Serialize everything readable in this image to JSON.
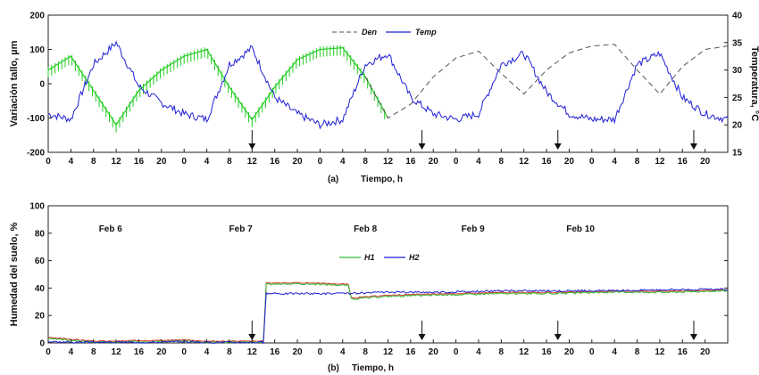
{
  "colors": {
    "stem": "#22cc22",
    "temp": "#1f1fd6",
    "den": "#555555",
    "h1": "#33bb33",
    "h2": "#1f1fd6",
    "h_red": "#d23a2a",
    "axes": "#222222"
  },
  "chart_data": [
    {
      "type": "line",
      "title": "",
      "caption_letter": "(a)",
      "caption_text": "Tiempo, h",
      "xlabel": "Tiempo, h",
      "ylabel": "Variación tallo, µm",
      "y2label": "Temperatura, °C",
      "ylim": [
        -200,
        200
      ],
      "y2lim": [
        15,
        40
      ],
      "xlim_hours": [
        0,
        120
      ],
      "yticks": [
        "-200",
        "-100",
        "0",
        "100",
        "200"
      ],
      "y2ticks": [
        "15",
        "20",
        "25",
        "30",
        "35",
        "40"
      ],
      "xticks": [
        "0",
        "4",
        "8",
        "12",
        "16",
        "20",
        "0",
        "4",
        "8",
        "12",
        "16",
        "20",
        "0",
        "4",
        "8",
        "12",
        "16",
        "20",
        "0",
        "4",
        "8",
        "12",
        "16",
        "20",
        "0",
        "4",
        "8",
        "12",
        "16",
        "20"
      ],
      "legend": {
        "placement": "top-center",
        "entries": [
          "Den",
          "Temp"
        ]
      },
      "arrows_at_hour": [
        36,
        66,
        90,
        114
      ],
      "series": [
        {
          "name": "Den",
          "axis": "left",
          "style": "dashed",
          "x": [
            0,
            4,
            8,
            12,
            16,
            20,
            24,
            28,
            32,
            36,
            40,
            44,
            48,
            52,
            56,
            60,
            64,
            68,
            72,
            76,
            80,
            84,
            88,
            92,
            96,
            100,
            104,
            108,
            112,
            116,
            120
          ],
          "y": [
            40,
            80,
            -20,
            -120,
            -20,
            40,
            80,
            100,
            -10,
            -105,
            -10,
            70,
            100,
            105,
            20,
            -100,
            -60,
            20,
            75,
            95,
            30,
            -30,
            40,
            90,
            110,
            115,
            40,
            -30,
            50,
            100,
            110
          ]
        },
        {
          "name": "Temp",
          "axis": "right",
          "style": "solid",
          "x": [
            0,
            4,
            8,
            12,
            16,
            20,
            24,
            28,
            32,
            36,
            40,
            44,
            48,
            52,
            56,
            60,
            64,
            68,
            72,
            76,
            80,
            84,
            88,
            92,
            96,
            100,
            104,
            108,
            112,
            116,
            120
          ],
          "y": [
            22,
            21,
            31,
            35,
            27,
            24,
            22,
            21,
            31,
            34,
            25,
            22,
            20,
            21,
            31,
            33,
            25,
            22,
            21,
            22,
            31,
            33,
            26,
            22,
            21,
            21,
            31,
            33,
            25,
            22,
            21
          ]
        }
      ]
    },
    {
      "type": "line",
      "title": "",
      "caption_letter": "(b)",
      "caption_text": "Tiempo, h",
      "xlabel": "Tiempo, h",
      "ylabel": "Humedad del suelo, %",
      "ylim": [
        0,
        100
      ],
      "xlim_hours": [
        0,
        120
      ],
      "yticks": [
        "0",
        "20",
        "40",
        "60",
        "80",
        "100"
      ],
      "xticks": [
        "0",
        "4",
        "8",
        "12",
        "16",
        "20",
        "0",
        "4",
        "8",
        "12",
        "16",
        "20",
        "0",
        "4",
        "8",
        "12",
        "16",
        "20",
        "0",
        "4",
        "8",
        "12",
        "16",
        "20",
        "0",
        "4",
        "8",
        "12",
        "16",
        "20"
      ],
      "legend": {
        "placement": "center",
        "entries": [
          "H1",
          "H2"
        ]
      },
      "date_labels": [
        {
          "text": "Feb 6",
          "hour": 11
        },
        {
          "text": "Feb 7",
          "hour": 34
        },
        {
          "text": "Feb 8",
          "hour": 56
        },
        {
          "text": "Feb  9",
          "hour": 75
        },
        {
          "text": "Feb 10",
          "hour": 94
        }
      ],
      "arrows_at_hour": [
        36,
        66,
        90,
        114
      ],
      "series": [
        {
          "name": "H1",
          "x": [
            0,
            4,
            8,
            12,
            16,
            20,
            24,
            28,
            32,
            36,
            38,
            38.5,
            46,
            53,
            53.5,
            60,
            70,
            80,
            90,
            100,
            110,
            120
          ],
          "y": [
            3,
            2,
            0.5,
            0.5,
            1,
            1,
            1.5,
            0.5,
            0.5,
            0.5,
            0.5,
            43,
            43,
            42,
            32,
            34,
            35,
            36,
            36,
            37,
            37,
            38
          ]
        },
        {
          "name": "H2",
          "x": [
            0,
            4,
            8,
            12,
            16,
            20,
            24,
            28,
            32,
            36,
            38,
            38.5,
            46,
            53,
            53.5,
            60,
            70,
            80,
            90,
            100,
            110,
            120
          ],
          "y": [
            1,
            0.5,
            0.5,
            0.5,
            0.5,
            0.5,
            1,
            0.5,
            0.5,
            0.5,
            0.5,
            36,
            36,
            36,
            36,
            37,
            37,
            38,
            38,
            38,
            39,
            39
          ]
        }
      ]
    }
  ]
}
